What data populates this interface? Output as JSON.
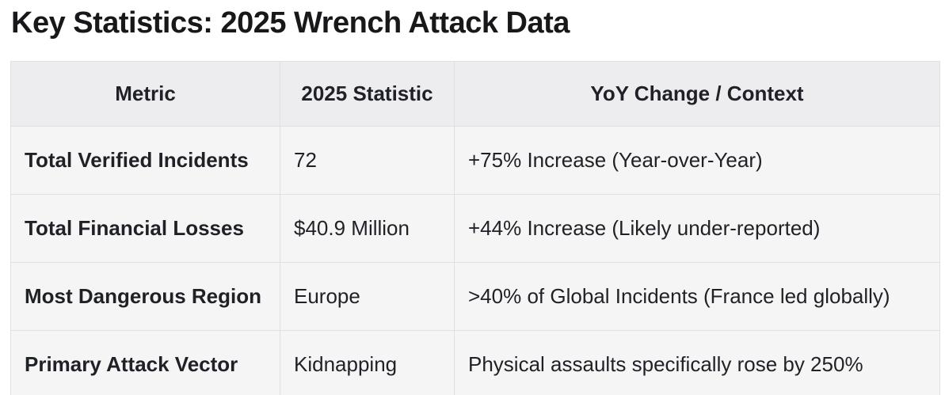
{
  "page": {
    "title": "Key Statistics: 2025 Wrench Attack Data"
  },
  "table": {
    "columns": [
      {
        "label": "Metric"
      },
      {
        "label": "2025 Statistic"
      },
      {
        "label": "YoY Change / Context"
      }
    ],
    "rows": [
      {
        "metric": "Total Verified Incidents",
        "statistic": "72",
        "context": "+75% Increase (Year-over-Year)"
      },
      {
        "metric": "Total Financial Losses",
        "statistic": "$40.9 Million",
        "context": "+44% Increase (Likely under-reported)"
      },
      {
        "metric": "Most Dangerous Region",
        "statistic": "Europe",
        "context": ">40% of Global Incidents (France led globally)"
      },
      {
        "metric": "Primary Attack Vector",
        "statistic": "Kidnapping",
        "context": "Physical assaults specifically rose by 250%"
      }
    ]
  },
  "colors": {
    "header_bg": "#ededef",
    "row_bg": "#f5f5f6",
    "border": "#e0e0e2",
    "text": "#1f2126",
    "title_text": "#18181b",
    "page_bg": "#ffffff"
  }
}
